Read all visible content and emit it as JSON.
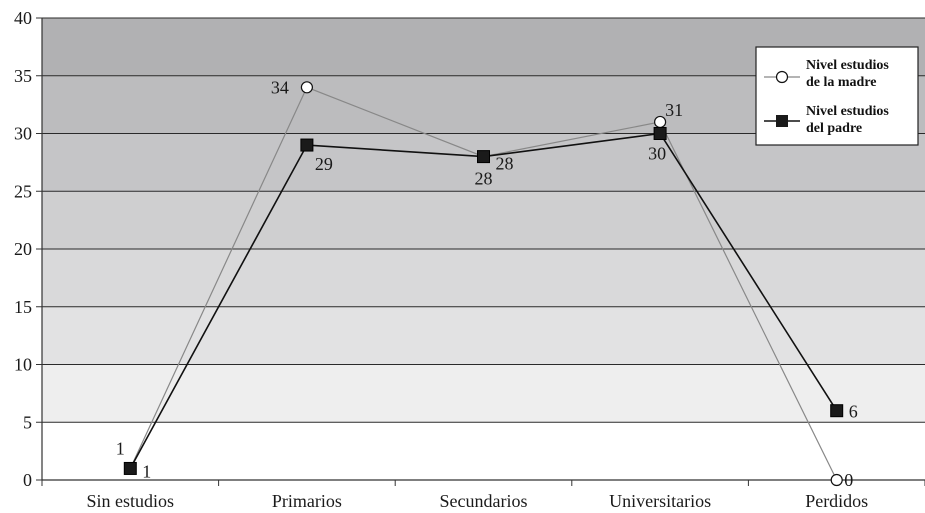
{
  "chart_data": {
    "type": "line",
    "categories": [
      "Sin estudios",
      "Primarios",
      "Secundarios",
      "Universitarios",
      "Perdidos"
    ],
    "ylim": [
      0,
      40
    ],
    "yticks": [
      0,
      5,
      10,
      15,
      20,
      25,
      30,
      35,
      40
    ],
    "grid": true,
    "legend_position": "top-right",
    "series": [
      {
        "name_lines": [
          "Nivel estudios",
          "de la madre"
        ],
        "marker": "circle",
        "color": "#888888",
        "values": [
          1,
          34,
          28,
          31,
          0
        ],
        "labels": [
          "1",
          "34",
          "28",
          "31",
          "0"
        ]
      },
      {
        "name_lines": [
          "Nivel estudios",
          "del padre"
        ],
        "marker": "square",
        "color": "#111111",
        "values": [
          1,
          29,
          28,
          30,
          6
        ],
        "labels": [
          "1",
          "29",
          "28",
          "30",
          "6"
        ]
      }
    ]
  }
}
